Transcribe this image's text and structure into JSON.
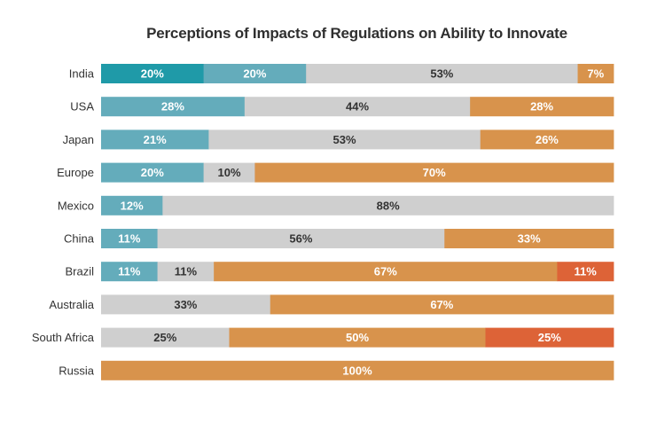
{
  "chart_data": {
    "type": "bar",
    "orientation": "horizontal",
    "stacked": true,
    "title": "Perceptions of Impacts of Regulations on Ability to Innovate",
    "categories": [
      "India",
      "USA",
      "Japan",
      "Europe",
      "Mexico",
      "China",
      "Brazil",
      "Australia",
      "South Africa",
      "Russia"
    ],
    "series": [
      {
        "color": "#1f9aa8",
        "values": [
          20,
          0,
          0,
          0,
          0,
          0,
          0,
          0,
          0,
          0
        ]
      },
      {
        "color": "#64acbb",
        "values": [
          20,
          28,
          21,
          20,
          12,
          11,
          11,
          0,
          0,
          0
        ]
      },
      {
        "color": "#cfcfcf",
        "values": [
          53,
          44,
          53,
          10,
          88,
          56,
          11,
          33,
          25,
          0
        ]
      },
      {
        "color": "#d8934c",
        "values": [
          7,
          28,
          26,
          70,
          0,
          33,
          67,
          67,
          50,
          100
        ]
      },
      {
        "color": "#dd6337",
        "values": [
          0,
          0,
          0,
          0,
          0,
          0,
          11,
          0,
          25,
          0
        ]
      }
    ],
    "value_suffix": "%",
    "xlim": [
      0,
      100
    ],
    "grid": false,
    "legend": "none"
  }
}
